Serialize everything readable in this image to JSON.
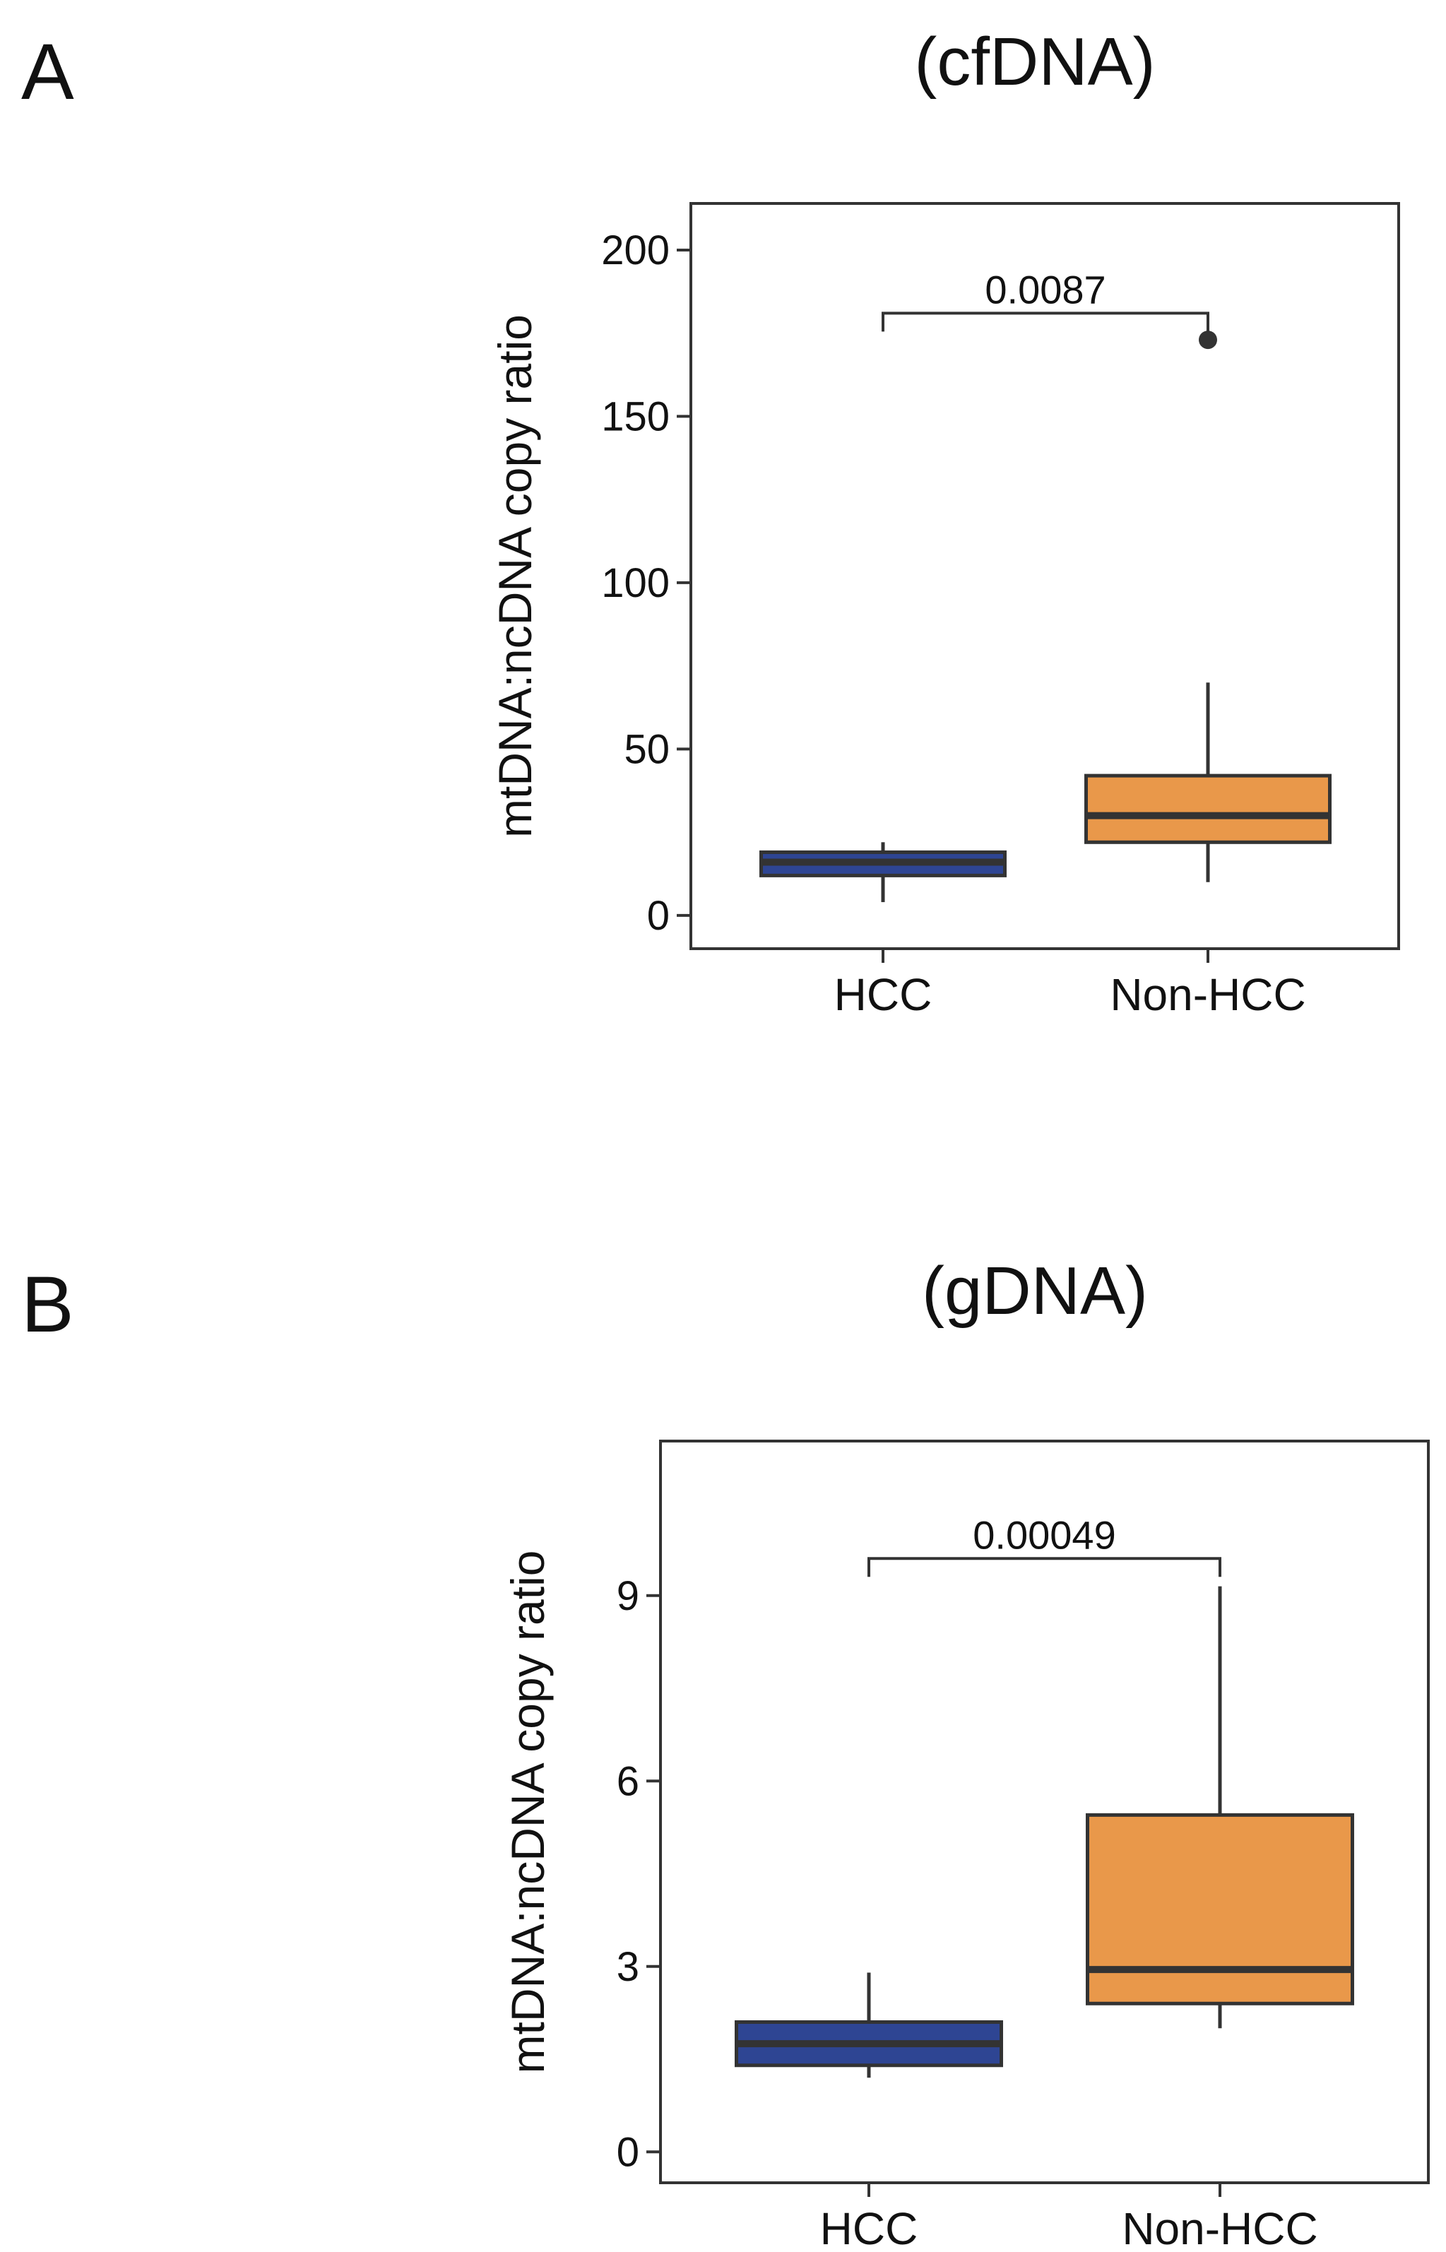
{
  "colors": {
    "hcc": "#2E4593",
    "non_hcc": "#E9984A",
    "line": "#333333",
    "frame": "#333333"
  },
  "chart_data": [
    {
      "type": "box",
      "panel_label": "A",
      "title": "(cfDNA)",
      "xlabel": "",
      "ylabel": "mtDNA:ncDNA copy ratio",
      "categories": [
        "HCC",
        "Non-HCC"
      ],
      "ylim": [
        -10,
        214
      ],
      "yticks": [
        0,
        50,
        100,
        150,
        200
      ],
      "grid": false,
      "boxes": [
        {
          "name": "HCC",
          "whisker_low": 4,
          "q1": 12,
          "median": 16,
          "q3": 19,
          "whisker_high": 22,
          "outliers": []
        },
        {
          "name": "Non-HCC",
          "whisker_low": 10,
          "q1": 22,
          "median": 30,
          "q3": 42,
          "whisker_high": 70,
          "outliers": [
            173
          ]
        }
      ],
      "significance": {
        "label": "0.0087",
        "between": [
          "HCC",
          "Non-HCC"
        ],
        "y": 181
      }
    },
    {
      "type": "box",
      "panel_label": "B",
      "title": "(gDNA)",
      "xlabel": "",
      "ylabel": "mtDNA:ncDNA copy ratio",
      "categories": [
        "HCC",
        "Non-HCC"
      ],
      "ylim": [
        -0.5,
        11.5
      ],
      "yticks": [
        0,
        3,
        6,
        9
      ],
      "grid": false,
      "boxes": [
        {
          "name": "HCC",
          "whisker_low": 1.2,
          "q1": 1.4,
          "median": 1.75,
          "q3": 2.1,
          "whisker_high": 2.9,
          "outliers": []
        },
        {
          "name": "Non-HCC",
          "whisker_low": 2.0,
          "q1": 2.4,
          "median": 2.95,
          "q3": 5.45,
          "whisker_high": 9.15,
          "outliers": []
        }
      ],
      "significance": {
        "label": "0.00049",
        "between": [
          "HCC",
          "Non-HCC"
        ],
        "y": 9.6
      }
    }
  ]
}
